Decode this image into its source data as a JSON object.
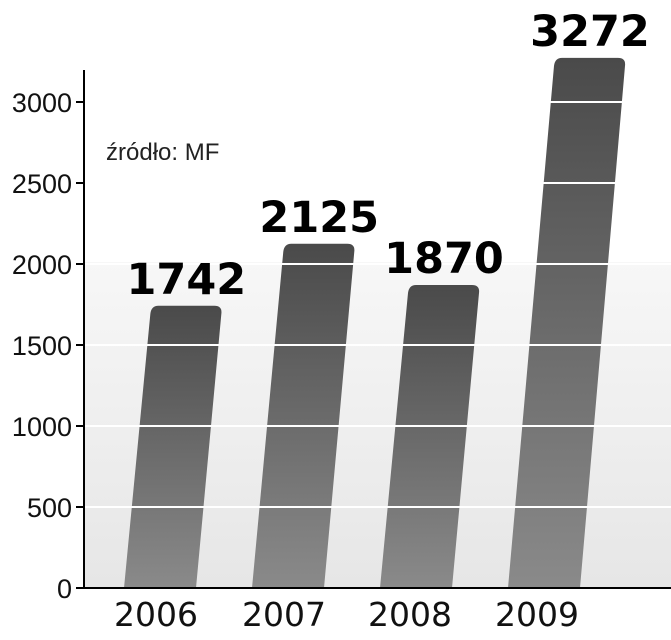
{
  "colors": {
    "bar_top": "#4a4a4a",
    "bar_bottom": "#8a8a8a",
    "plot_bg_top": "#f7f7f7",
    "plot_bg_bottom": "#e6e6e6",
    "gridline": "#ffffff",
    "axis": "#000000"
  },
  "source_note": "źródło: MF",
  "chart_data": {
    "type": "bar",
    "title": "",
    "xlabel": "",
    "ylabel": "",
    "categories": [
      "2006",
      "2007",
      "2008",
      "2009"
    ],
    "values": [
      1742,
      2125,
      1870,
      3272
    ],
    "value_labels": [
      "1742",
      "2125",
      "1870",
      "3272"
    ],
    "ylim": [
      0,
      3300
    ],
    "yticks": [
      0,
      500,
      1000,
      1500,
      2000,
      2500,
      3000
    ],
    "ytick_labels": [
      "0",
      "500",
      "1000",
      "1500",
      "2000",
      "2500",
      "3000"
    ],
    "grid": true,
    "legend": "none"
  }
}
